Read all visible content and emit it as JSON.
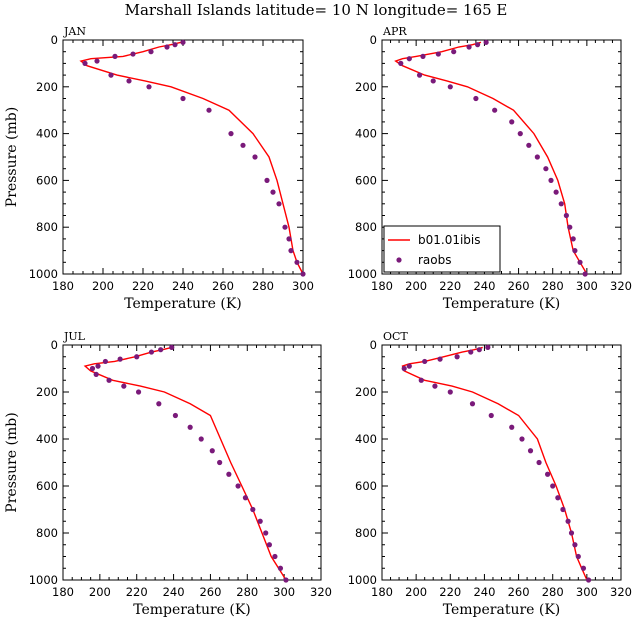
{
  "figure": {
    "title": "Marshall Islands  latitude= 10 N longitude= 165 E"
  },
  "colors": {
    "model_line": "#ff0000",
    "obs_marker": "#7a1a7a",
    "axes": "#000000"
  },
  "legend": {
    "panel": "APR",
    "placement": "bottom-left",
    "entries": [
      {
        "label": "b01.01ibis",
        "kind": "line"
      },
      {
        "label": "raobs",
        "kind": "marker"
      }
    ]
  },
  "chart_data": [
    {
      "type": "line",
      "panel_label": "JAN",
      "xlabel": "Temperature (K)",
      "ylabel": "Pressure (mb)",
      "xlim": [
        180,
        300
      ],
      "ylim": [
        1000,
        0
      ],
      "y_inverted": true,
      "xticks": [
        180,
        200,
        220,
        240,
        260,
        280,
        300
      ],
      "yticks": [
        0,
        200,
        400,
        600,
        800,
        1000
      ],
      "series": [
        {
          "name": "b01.01ibis",
          "style": "line",
          "points": [
            [
              239,
              10
            ],
            [
              234,
              20
            ],
            [
              228,
              30
            ],
            [
              220,
              50
            ],
            [
              210,
              70
            ],
            [
              194,
              80
            ],
            [
              189,
              90
            ],
            [
              192,
              110
            ],
            [
              207,
              150
            ],
            [
              221,
              175
            ],
            [
              234,
              200
            ],
            [
              250,
              250
            ],
            [
              263,
              300
            ],
            [
              275,
              400
            ],
            [
              283,
              500
            ],
            [
              287,
              600
            ],
            [
              290,
              700
            ],
            [
              293,
              800
            ],
            [
              295,
              900
            ],
            [
              297,
              950
            ],
            [
              300,
              1000
            ]
          ]
        },
        {
          "name": "raobs",
          "style": "scatter",
          "points": [
            [
              240,
              10
            ],
            [
              236,
              20
            ],
            [
              232,
              30
            ],
            [
              224,
              50
            ],
            [
              215,
              60
            ],
            [
              206,
              70
            ],
            [
              197,
              90
            ],
            [
              191,
              100
            ],
            [
              204,
              150
            ],
            [
              213,
              175
            ],
            [
              223,
              200
            ],
            [
              240,
              250
            ],
            [
              253,
              300
            ],
            [
              264,
              400
            ],
            [
              270,
              450
            ],
            [
              276,
              500
            ],
            [
              282,
              600
            ],
            [
              285,
              650
            ],
            [
              288,
              700
            ],
            [
              291,
              800
            ],
            [
              293,
              850
            ],
            [
              294,
              900
            ],
            [
              297,
              950
            ],
            [
              300,
              1000
            ]
          ]
        }
      ]
    },
    {
      "type": "line",
      "panel_label": "APR",
      "xlabel": "Temperature (K)",
      "ylabel": "",
      "xlim": [
        180,
        320
      ],
      "ylim": [
        1000,
        0
      ],
      "y_inverted": true,
      "xticks": [
        180,
        200,
        220,
        240,
        260,
        280,
        300,
        320
      ],
      "yticks": [
        0,
        200,
        400,
        600,
        800,
        1000
      ],
      "series": [
        {
          "name": "b01.01ibis",
          "style": "line",
          "points": [
            [
              238,
              10
            ],
            [
              233,
              20
            ],
            [
              225,
              30
            ],
            [
              215,
              50
            ],
            [
              200,
              70
            ],
            [
              192,
              80
            ],
            [
              188,
              90
            ],
            [
              192,
              110
            ],
            [
              205,
              150
            ],
            [
              218,
              175
            ],
            [
              230,
              200
            ],
            [
              245,
              250
            ],
            [
              257,
              300
            ],
            [
              269,
              400
            ],
            [
              277,
              500
            ],
            [
              283,
              600
            ],
            [
              287,
              700
            ],
            [
              289,
              800
            ],
            [
              292,
              900
            ],
            [
              296,
              950
            ],
            [
              300,
              1000
            ]
          ]
        },
        {
          "name": "raobs",
          "style": "scatter",
          "points": [
            [
              241,
              10
            ],
            [
              236,
              20
            ],
            [
              231,
              30
            ],
            [
              222,
              50
            ],
            [
              213,
              60
            ],
            [
              204,
              70
            ],
            [
              196,
              80
            ],
            [
              191,
              100
            ],
            [
              202,
              150
            ],
            [
              210,
              175
            ],
            [
              220,
              200
            ],
            [
              235,
              250
            ],
            [
              246,
              300
            ],
            [
              256,
              350
            ],
            [
              261,
              400
            ],
            [
              266,
              450
            ],
            [
              271,
              500
            ],
            [
              276,
              550
            ],
            [
              279,
              600
            ],
            [
              282,
              650
            ],
            [
              285,
              700
            ],
            [
              288,
              750
            ],
            [
              290,
              800
            ],
            [
              292,
              850
            ],
            [
              293,
              900
            ],
            [
              296,
              950
            ],
            [
              299,
              1000
            ]
          ]
        }
      ]
    },
    {
      "type": "line",
      "panel_label": "JUL",
      "xlabel": "Temperature (K)",
      "ylabel": "Pressure (mb)",
      "xlim": [
        180,
        320
      ],
      "ylim": [
        1000,
        0
      ],
      "y_inverted": true,
      "xticks": [
        180,
        200,
        220,
        240,
        260,
        280,
        300,
        320
      ],
      "yticks": [
        0,
        200,
        400,
        600,
        800,
        1000
      ],
      "series": [
        {
          "name": "b01.01ibis",
          "style": "line",
          "points": [
            [
              239,
              10
            ],
            [
              234,
              20
            ],
            [
              228,
              30
            ],
            [
              219,
              50
            ],
            [
              208,
              70
            ],
            [
              197,
              80
            ],
            [
              192,
              90
            ],
            [
              195,
              110
            ],
            [
              207,
              150
            ],
            [
              222,
              175
            ],
            [
              235,
              200
            ],
            [
              249,
              250
            ],
            [
              260,
              300
            ],
            [
              271,
              500
            ],
            [
              277,
              600
            ],
            [
              283,
              700
            ],
            [
              288,
              800
            ],
            [
              293,
              900
            ],
            [
              297,
              950
            ],
            [
              301,
              1000
            ]
          ]
        },
        {
          "name": "raobs",
          "style": "scatter",
          "points": [
            [
              239,
              10
            ],
            [
              233,
              20
            ],
            [
              228,
              30
            ],
            [
              220,
              50
            ],
            [
              211,
              60
            ],
            [
              203,
              70
            ],
            [
              199,
              90
            ],
            [
              196,
              100
            ],
            [
              198,
              125
            ],
            [
              205,
              150
            ],
            [
              213,
              175
            ],
            [
              221,
              200
            ],
            [
              232,
              250
            ],
            [
              241,
              300
            ],
            [
              249,
              350
            ],
            [
              255,
              400
            ],
            [
              261,
              450
            ],
            [
              265,
              500
            ],
            [
              270,
              550
            ],
            [
              275,
              600
            ],
            [
              279,
              650
            ],
            [
              283,
              700
            ],
            [
              287,
              750
            ],
            [
              290,
              800
            ],
            [
              292,
              850
            ],
            [
              295,
              900
            ],
            [
              298,
              950
            ],
            [
              301,
              1000
            ]
          ]
        }
      ]
    },
    {
      "type": "line",
      "panel_label": "OCT",
      "xlabel": "Temperature (K)",
      "ylabel": "",
      "xlim": [
        180,
        320
      ],
      "ylim": [
        1000,
        0
      ],
      "y_inverted": true,
      "xticks": [
        180,
        200,
        220,
        240,
        260,
        280,
        300,
        320
      ],
      "yticks": [
        0,
        200,
        400,
        600,
        800,
        1000
      ],
      "series": [
        {
          "name": "b01.01ibis",
          "style": "line",
          "points": [
            [
              239,
              10
            ],
            [
              234,
              20
            ],
            [
              227,
              30
            ],
            [
              216,
              50
            ],
            [
              205,
              70
            ],
            [
              196,
              80
            ],
            [
              192,
              90
            ],
            [
              193,
              110
            ],
            [
              205,
              150
            ],
            [
              221,
              175
            ],
            [
              233,
              200
            ],
            [
              248,
              250
            ],
            [
              260,
              300
            ],
            [
              271,
              400
            ],
            [
              276,
              500
            ],
            [
              282,
              600
            ],
            [
              287,
              700
            ],
            [
              291,
              800
            ],
            [
              294,
              900
            ],
            [
              297,
              950
            ],
            [
              300,
              1000
            ]
          ]
        },
        {
          "name": "raobs",
          "style": "scatter",
          "points": [
            [
              242,
              10
            ],
            [
              237,
              20
            ],
            [
              232,
              30
            ],
            [
              224,
              50
            ],
            [
              214,
              60
            ],
            [
              205,
              70
            ],
            [
              196,
              90
            ],
            [
              193,
              100
            ],
            [
              203,
              150
            ],
            [
              211,
              175
            ],
            [
              220,
              200
            ],
            [
              233,
              250
            ],
            [
              244,
              300
            ],
            [
              256,
              350
            ],
            [
              262,
              400
            ],
            [
              267,
              450
            ],
            [
              272,
              500
            ],
            [
              277,
              550
            ],
            [
              280,
              600
            ],
            [
              283,
              650
            ],
            [
              286,
              700
            ],
            [
              289,
              750
            ],
            [
              291,
              800
            ],
            [
              293,
              850
            ],
            [
              295,
              900
            ],
            [
              298,
              950
            ],
            [
              301,
              1000
            ]
          ]
        }
      ]
    }
  ]
}
